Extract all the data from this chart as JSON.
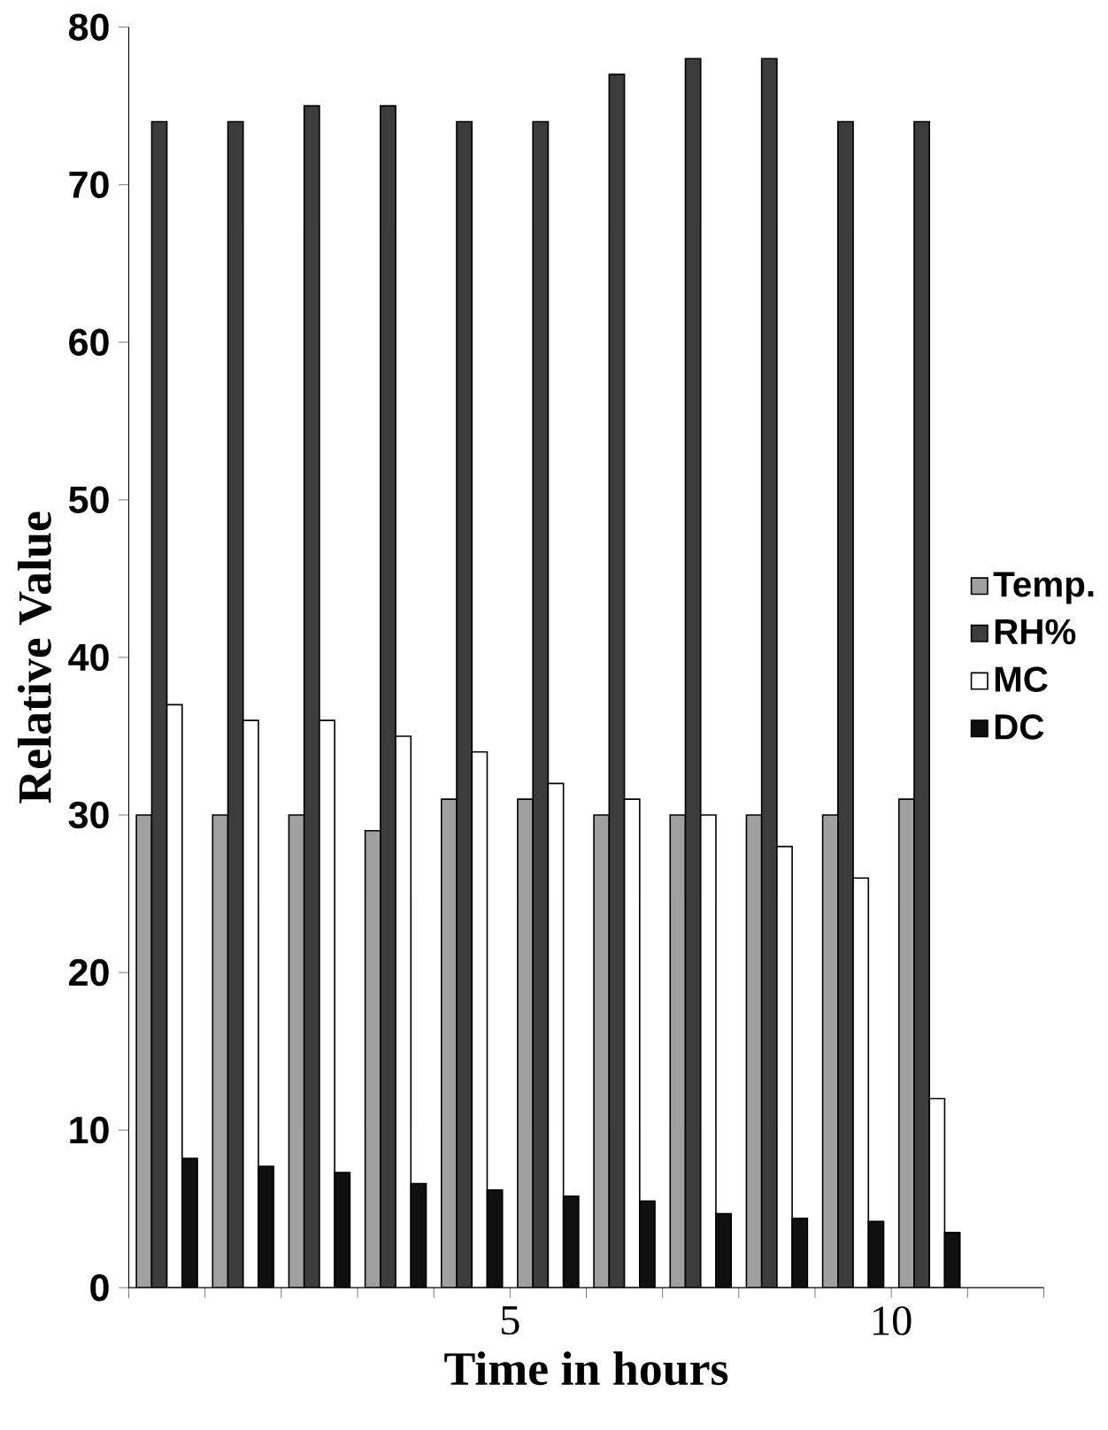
{
  "chart_data": {
    "type": "bar",
    "xlabel": "Time in hours",
    "ylabel": "Relative Value",
    "x": [
      0.5,
      1.5,
      2.5,
      3.5,
      4.5,
      5.5,
      6.5,
      7.5,
      8.5,
      9.5,
      10.5
    ],
    "series": [
      {
        "name": "Temp.",
        "color": "#a0a0a0",
        "values": [
          30,
          30,
          30,
          29,
          31,
          31,
          30,
          30,
          30,
          30,
          31
        ]
      },
      {
        "name": "RH%",
        "color": "#3c3c3c",
        "values": [
          74,
          74,
          75,
          75,
          74,
          74,
          77,
          78,
          78,
          74,
          74
        ]
      },
      {
        "name": "MC",
        "color": "#ffffff",
        "values": [
          37,
          36,
          36,
          35,
          34,
          32,
          31,
          30,
          28,
          26,
          12
        ]
      },
      {
        "name": "DC",
        "color": "#101010",
        "values": [
          8.2,
          7.7,
          7.3,
          6.6,
          6.2,
          5.8,
          5.5,
          4.7,
          4.4,
          4.2,
          3.5
        ]
      }
    ],
    "xlim": [
      0,
      12
    ],
    "xticks": [
      {
        "value": 0,
        "label": null
      },
      {
        "value": 1,
        "label": null
      },
      {
        "value": 2,
        "label": null
      },
      {
        "value": 3,
        "label": null
      },
      {
        "value": 4,
        "label": null
      },
      5,
      {
        "value": 6,
        "label": null
      },
      {
        "value": 7,
        "label": null
      },
      {
        "value": 8,
        "label": null
      },
      {
        "value": 9,
        "label": null
      },
      10,
      {
        "value": 11,
        "label": null
      },
      {
        "value": 12,
        "label": null
      }
    ],
    "ylim": [
      0,
      80
    ],
    "yticks": [
      0,
      10,
      20,
      30,
      40,
      50,
      60,
      70,
      80
    ],
    "legend": "right",
    "grid": false
  }
}
